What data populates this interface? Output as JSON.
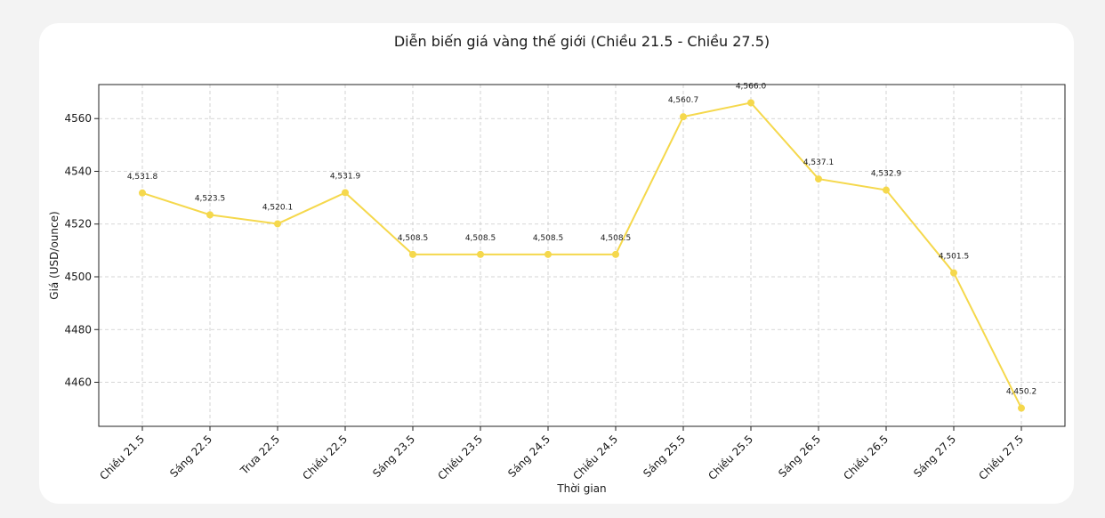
{
  "chart_data": {
    "type": "line",
    "title": "Diễn biến giá vàng thế giới (Chiều 21.5 - Chiều 27.5)",
    "xlabel": "Thời gian",
    "ylabel": "Giá (USD/ounce)",
    "categories": [
      "Chiều 21.5",
      "Sáng 22.5",
      "Trưa 22.5",
      "Chiều 22.5",
      "Sáng 23.5",
      "Chiều 23.5",
      "Sáng 24.5",
      "Chiều 24.5",
      "Sáng 25.5",
      "Chiều 25.5",
      "Sáng 26.5",
      "Chiều 26.5",
      "Sáng 27.5",
      "Chiều 27.5"
    ],
    "values": [
      4531.8,
      4523.5,
      4520.1,
      4531.9,
      4508.5,
      4508.5,
      4508.5,
      4508.5,
      4560.7,
      4566.0,
      4537.1,
      4532.9,
      4501.5,
      4450.2
    ],
    "data_labels": [
      "4,531.8",
      "4,523.5",
      "4,520.1",
      "4,531.9",
      "4,508.5",
      "4,508.5",
      "4,508.5",
      "4,508.5",
      "4,560.7",
      "4,566.0",
      "4,537.1",
      "4,532.9",
      "4,501.5",
      "4,450.2"
    ],
    "yticks": [
      4460,
      4480,
      4500,
      4520,
      4540,
      4560
    ],
    "ylim": [
      4443.3,
      4572.9
    ],
    "grid": true,
    "color": "#f5d84c"
  }
}
